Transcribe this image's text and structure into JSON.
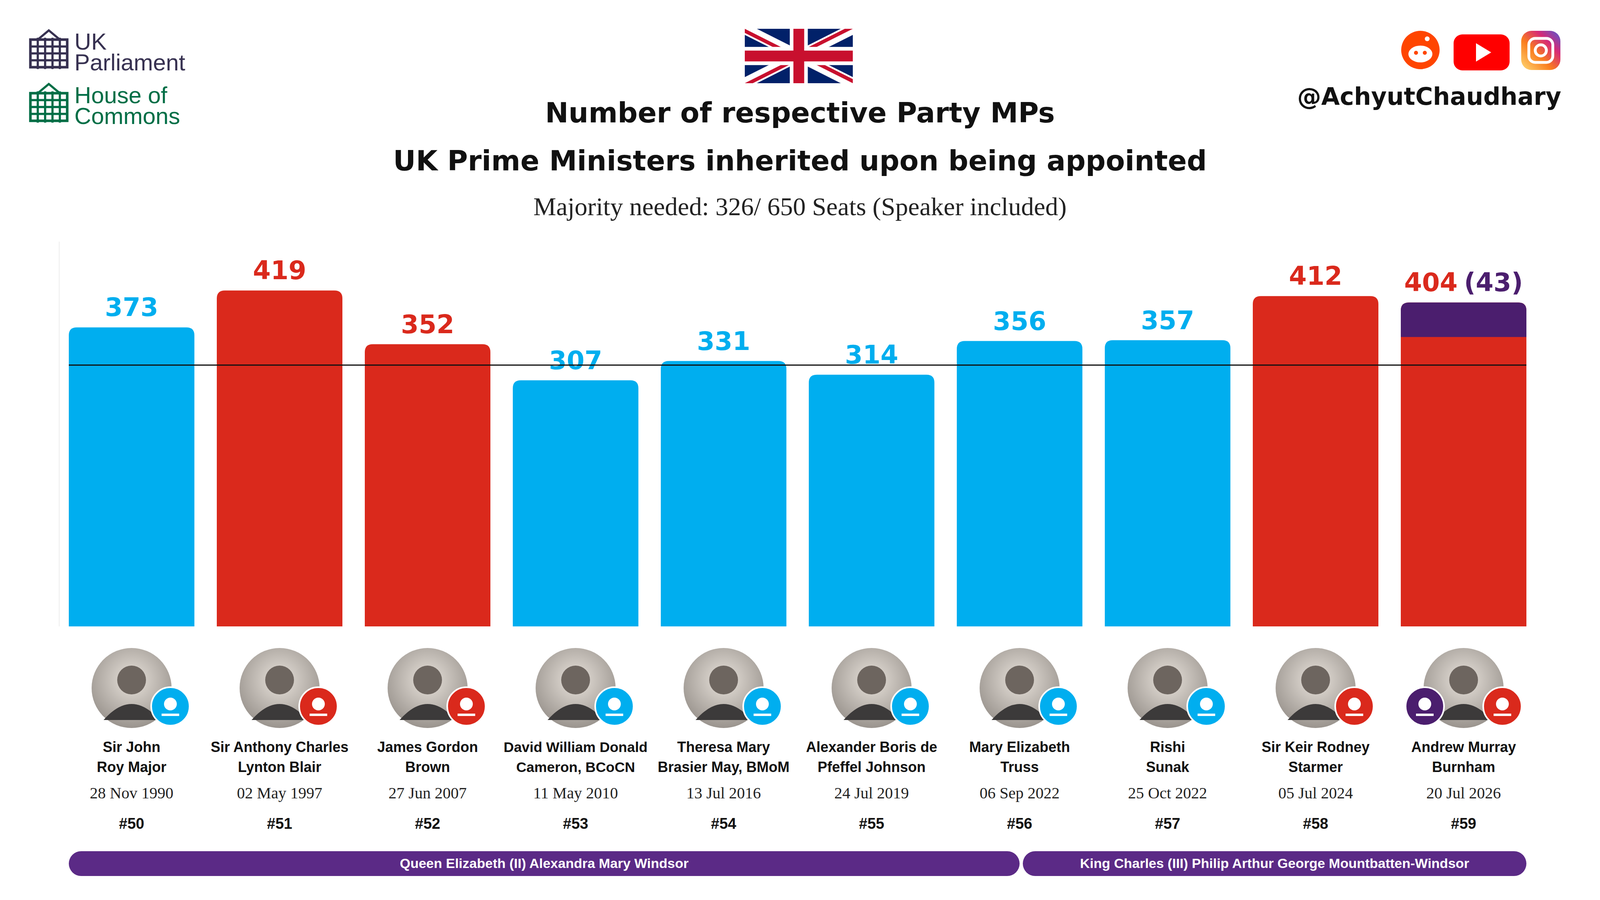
{
  "chart_data": {
    "type": "bar",
    "title": "Number of respective Party MPs",
    "subtitle": "UK Prime Ministers inherited upon being appointed",
    "caption": "Majority needed: 326/ 650 Seats (Speaker included)",
    "categories": [
      "Sir John\nRoy Major",
      "Sir Anthony Charles\nLynton Blair",
      "James Gordon\nBrown",
      "David William Donald\nCameron, BCoCN",
      "Theresa Mary\nBrasier May, BMoM",
      "Alexander Boris de\nPfeffel Johnson",
      "Mary Elizabeth\nTruss",
      "Rishi\nSunak",
      "Sir Keir Rodney\nStarmer",
      "Andrew Murray\nBurnham"
    ],
    "values": [
      373,
      419,
      352,
      307,
      331,
      314,
      356,
      357,
      412,
      404
    ],
    "colors": [
      "#00aeef",
      "#da291c",
      "#da291c",
      "#00aeef",
      "#00aeef",
      "#00aeef",
      "#00aeef",
      "#00aeef",
      "#da291c",
      "#da291c"
    ],
    "co_op_values": [
      null,
      null,
      null,
      null,
      null,
      null,
      null,
      null,
      null,
      43
    ],
    "co_op_value_labels": [
      null,
      null,
      null,
      null,
      null,
      null,
      null,
      null,
      null,
      "(43)"
    ],
    "co_op_color": "#4b1e6e",
    "reference_line": {
      "value": 326
    },
    "ylim": [
      0,
      480
    ],
    "yticks": [],
    "grid": false,
    "tick_labels": "x",
    "data_labels": true,
    "dates": [
      "28 Nov 1990",
      "02 May 1997",
      "27 Jun 2007",
      "11 May 2010",
      "13 Jul 2016",
      "24 Jul 2019",
      "06 Sep 2022",
      "25 Oct 2022",
      "05 Jul 2024",
      "20 Jul 2026"
    ],
    "pm_numbers": [
      "#50",
      "#51",
      "#52",
      "#53",
      "#54",
      "#55",
      "#56",
      "#57",
      "#58",
      "#59"
    ],
    "monarchs": [
      {
        "name": "Queen Elizabeth (II) Alexandra Mary Windsor",
        "first": 0,
        "last": 6
      },
      {
        "name": "King Charles (III) Philip Arthur George Mountbatten-Windsor",
        "first": 7,
        "last": 9
      }
    ],
    "branding": {
      "parliament": "UK\nParliament",
      "commons": "House of\nCommons",
      "handle": "@AchyutChaudhary"
    }
  }
}
